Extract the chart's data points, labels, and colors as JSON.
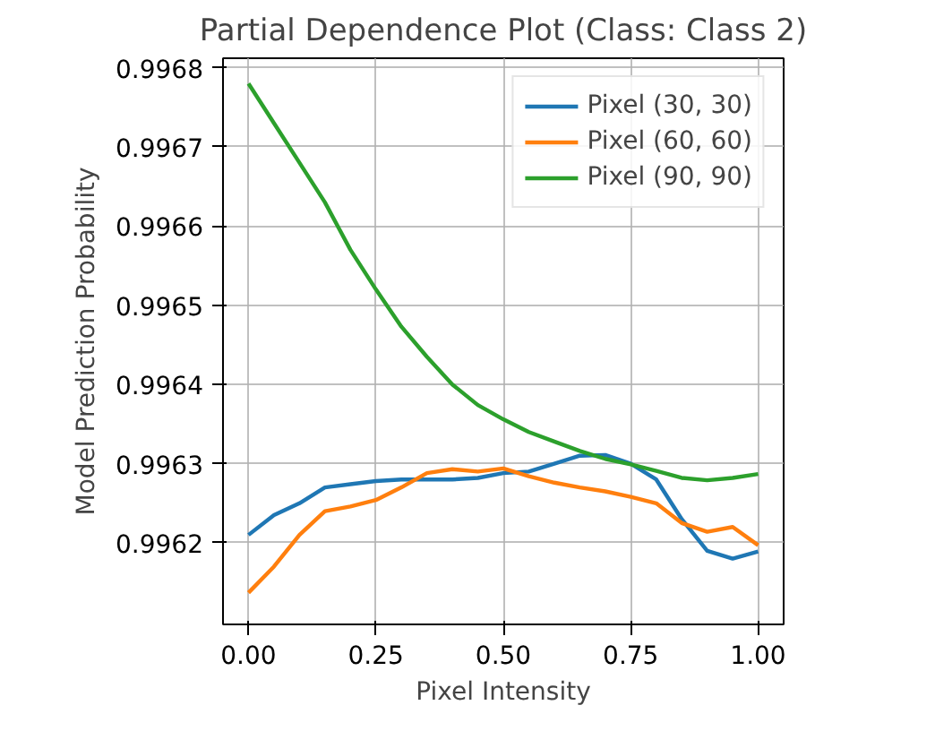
{
  "chart_data": {
    "type": "line",
    "title": "Partial Dependence Plot (Class: Class 2)",
    "xlabel": "Pixel Intensity",
    "ylabel": "Model Prediction Probability",
    "x": [
      0,
      0.05,
      0.1,
      0.15,
      0.2,
      0.25,
      0.3,
      0.35,
      0.4,
      0.45,
      0.5,
      0.55,
      0.6,
      0.65,
      0.7,
      0.75,
      0.8,
      0.85,
      0.9,
      0.95,
      1.0
    ],
    "series": [
      {
        "name": "Pixel (30, 30)",
        "color": "#1f77b4",
        "values": [
          0.99621,
          0.996235,
          0.99625,
          0.99627,
          0.996274,
          0.996278,
          0.99628,
          0.99628,
          0.99628,
          0.996282,
          0.996288,
          0.99629,
          0.9963,
          0.99631,
          0.996311,
          0.9963,
          0.99628,
          0.99623,
          0.99619,
          0.99618,
          0.996189
        ]
      },
      {
        "name": "Pixel (60, 60)",
        "color": "#ff7f0e",
        "values": [
          0.996137,
          0.99617,
          0.99621,
          0.99624,
          0.996246,
          0.996254,
          0.99627,
          0.996288,
          0.996293,
          0.99629,
          0.996294,
          0.996284,
          0.996276,
          0.99627,
          0.996265,
          0.996258,
          0.99625,
          0.996225,
          0.996214,
          0.99622,
          0.996197
        ]
      },
      {
        "name": "Pixel (90, 90)",
        "color": "#2ca02c",
        "values": [
          0.99678,
          0.99673,
          0.99668,
          0.99663,
          0.99657,
          0.99652,
          0.996473,
          0.996435,
          0.9964,
          0.996374,
          0.996356,
          0.99634,
          0.996328,
          0.996316,
          0.996306,
          0.996299,
          0.996291,
          0.996282,
          0.996279,
          0.996282,
          0.996287
        ]
      }
    ],
    "xlim": [
      -0.05,
      1.05
    ],
    "ylim": [
      0.996097,
      0.996812
    ],
    "xticks": [
      {
        "value": 0,
        "label": "0.00"
      },
      0.25,
      {
        "value": 0.5,
        "label": "0.50"
      },
      0.75,
      {
        "value": 1,
        "label": "1.00"
      }
    ],
    "yticks": [
      0.9962,
      0.9963,
      0.9964,
      0.9965,
      0.9966,
      0.9967,
      0.9968
    ],
    "grid": true,
    "legend": "top right"
  }
}
